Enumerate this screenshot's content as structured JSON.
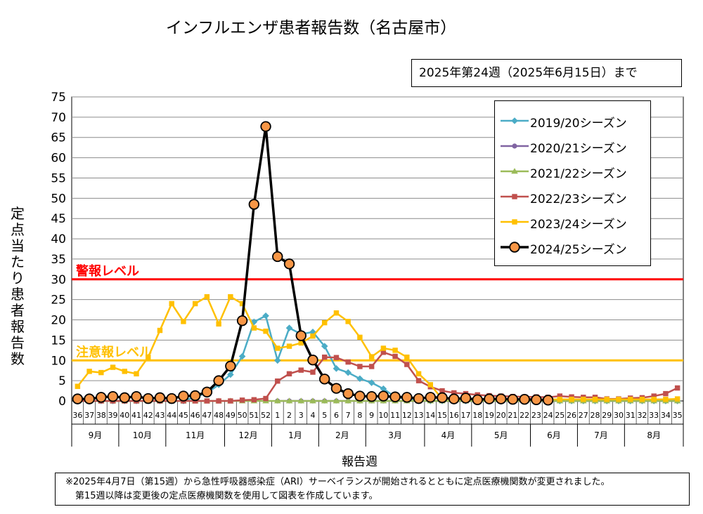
{
  "header": {
    "title": "インフルエンザ患者報告数（名古屋市）",
    "date_range": "2025年第24週（2025年6月15日）まで"
  },
  "footnote": {
    "line1": "※2025年4月7日（第15週）から急性呼吸器感染症（ARI）サーベイランスが開始されるとともに定点医療機関数が変更されました。",
    "line2": "第15週以降は変更後の定点医療機関数を使用して図表を作成しています。"
  },
  "chart_data": {
    "type": "line",
    "title": "インフルエンザ患者報告数（名古屋市）",
    "xlabel": "報告週",
    "ylabel": "定点当たり患者報告数",
    "ylim": [
      0,
      75
    ],
    "yticks": [
      "0",
      "5",
      "10",
      "15",
      "20",
      "25",
      "30",
      "35",
      "40",
      "45",
      "50",
      "55",
      "60",
      "65",
      "70",
      "75"
    ],
    "grid": true,
    "legend_position": "top-right",
    "categories": [
      "36",
      "37",
      "38",
      "39",
      "40",
      "41",
      "42",
      "43",
      "44",
      "45",
      "46",
      "47",
      "48",
      "49",
      "50",
      "51",
      "52",
      "1",
      "2",
      "3",
      "4",
      "5",
      "6",
      "7",
      "8",
      "9",
      "10",
      "11",
      "12",
      "13",
      "14",
      "15",
      "16",
      "17",
      "18",
      "19",
      "20",
      "21",
      "22",
      "23",
      "24",
      "25",
      "26",
      "27",
      "28",
      "29",
      "30",
      "31",
      "32",
      "33",
      "34",
      "35"
    ],
    "months": [
      {
        "label": "9月",
        "start": 0,
        "end": 4
      },
      {
        "label": "10月",
        "start": 4,
        "end": 8
      },
      {
        "label": "11月",
        "start": 8,
        "end": 13
      },
      {
        "label": "12月",
        "start": 13,
        "end": 17
      },
      {
        "label": "1月",
        "start": 17,
        "end": 21
      },
      {
        "label": "2月",
        "start": 21,
        "end": 25
      },
      {
        "label": "3月",
        "start": 25,
        "end": 30
      },
      {
        "label": "4月",
        "start": 30,
        "end": 34
      },
      {
        "label": "5月",
        "start": 34,
        "end": 39
      },
      {
        "label": "6月",
        "start": 39,
        "end": 43
      },
      {
        "label": "7月",
        "start": 43,
        "end": 47
      },
      {
        "label": "8月",
        "start": 47,
        "end": 52
      }
    ],
    "thresholds": [
      {
        "label": "警報レベル",
        "value": 30,
        "color": "#ff0000"
      },
      {
        "label": "注意報レベル",
        "value": 10,
        "color": "#ffc000"
      }
    ],
    "series": [
      {
        "name": "2019/20シーズン",
        "color": "#4bacc6",
        "marker": "diamond",
        "values": [
          0,
          0,
          0,
          0,
          0,
          0,
          0,
          0,
          0,
          0,
          1,
          2,
          4,
          6.5,
          11,
          19.5,
          21,
          10,
          18,
          16.5,
          17,
          13.5,
          8,
          7,
          5.5,
          4.5,
          3,
          1,
          0.5,
          0,
          0,
          0,
          0,
          0,
          0,
          0,
          0,
          0,
          0,
          0,
          0,
          0,
          0,
          0,
          0,
          0,
          0,
          0,
          0,
          0,
          0,
          0
        ]
      },
      {
        "name": "2020/21シーズン",
        "color": "#8064a2",
        "marker": "circle",
        "values": [
          null,
          null,
          null,
          null,
          null,
          null,
          null,
          null,
          null,
          null,
          null,
          null,
          null,
          null,
          null,
          null,
          null,
          0,
          0,
          0,
          0,
          0,
          0,
          0,
          0,
          0,
          0,
          0,
          0,
          0,
          0,
          0,
          0,
          0,
          0,
          0,
          0,
          0,
          0,
          0,
          0,
          0,
          0,
          0,
          0,
          0,
          0,
          0,
          0,
          0,
          0,
          0
        ]
      },
      {
        "name": "2021/22シーズン",
        "color": "#9bbb59",
        "marker": "triangle",
        "values": [
          0,
          0,
          0,
          0,
          0,
          0,
          0,
          0,
          0,
          0,
          0,
          0,
          0,
          0,
          0,
          0,
          0,
          0,
          0,
          0,
          0,
          0,
          0,
          0,
          0,
          0,
          0,
          0,
          0,
          0,
          0,
          0,
          0,
          0,
          0,
          0,
          0,
          0,
          0,
          0,
          0,
          0,
          0,
          0,
          0,
          0,
          0,
          0,
          0,
          0,
          0,
          0
        ]
      },
      {
        "name": "2022/23シーズン",
        "color": "#c0504d",
        "marker": "square",
        "values": [
          0,
          0,
          0,
          0,
          0,
          0,
          0,
          0,
          0,
          0,
          0,
          0,
          0,
          0,
          0.2,
          0.3,
          0.6,
          4.9,
          6.7,
          7.6,
          7.1,
          10.8,
          10.7,
          9.6,
          8.5,
          8.5,
          12,
          11,
          9,
          5,
          3.5,
          2.5,
          2,
          1.8,
          1.5,
          1.3,
          1.2,
          1.1,
          1,
          1,
          0.9,
          1.2,
          1,
          0.9,
          0.9,
          0.5,
          0.5,
          0.7,
          0.8,
          1.2,
          1.8,
          3.2
        ]
      },
      {
        "name": "2023/24シーズン",
        "color": "#ffc000",
        "marker": "square",
        "values": [
          3.6,
          7.3,
          7,
          8.3,
          7.3,
          6.7,
          10.8,
          17.4,
          24,
          19.6,
          24,
          25.7,
          19,
          25.7,
          24,
          18,
          17.2,
          13,
          13.5,
          14.3,
          16,
          19.3,
          21.7,
          19.6,
          15.7,
          10.9,
          13,
          12.5,
          10.8,
          6.7,
          4,
          0.5,
          0.5,
          0.5,
          0.5,
          0.5,
          0.5,
          0.5,
          0.4,
          0.4,
          0.4,
          0.4,
          0.4,
          0.4,
          0.4,
          0.4,
          0.4,
          0.4,
          0.4,
          0.4,
          0.4,
          0.5
        ]
      },
      {
        "name": "2024/25シーズン",
        "color": "#000000",
        "fill": "#f79646",
        "marker": "circle",
        "values": [
          0.5,
          0.5,
          0.9,
          1.1,
          0.8,
          1.1,
          0.6,
          0.8,
          0.6,
          1.2,
          1.3,
          2.2,
          5,
          8.6,
          19.8,
          48.5,
          67.7,
          35.6,
          33.8,
          16.1,
          10.1,
          5.4,
          3.1,
          1.8,
          1.2,
          1.1,
          1.2,
          1,
          0.9,
          0.6,
          0.9,
          0.8,
          0.5,
          0.7,
          0.3,
          0.5,
          0.5,
          0.4,
          0.4,
          0.3,
          0.2,
          null,
          null,
          null,
          null,
          null,
          null,
          null,
          null,
          null,
          null,
          null
        ]
      }
    ]
  }
}
